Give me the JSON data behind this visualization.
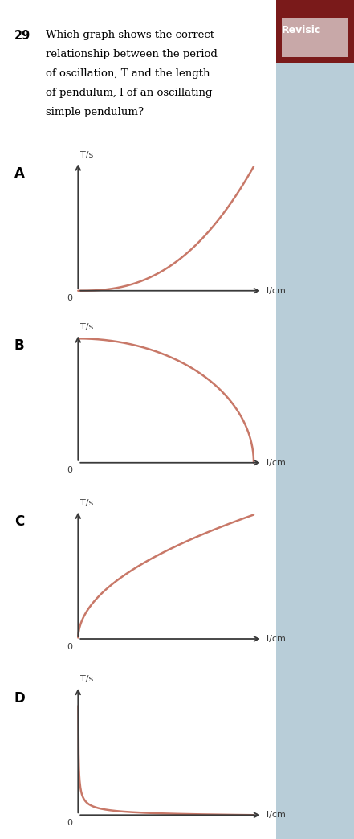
{
  "page_bg": "#ffffff",
  "right_bg": "#b8cdd8",
  "curve_color": "#c87868",
  "axis_color": "#3a3a3a",
  "revision_bg": "#7a1a1a",
  "revision_box_bg": "#c8a8a8",
  "question_num": "29",
  "question_lines": [
    "Which graph shows the correct",
    "relationship between the period",
    "of oscillation, T and the length",
    "of pendulum, l of an oscillating",
    "simple pendulum?"
  ],
  "labels": [
    "A",
    "B",
    "C",
    "D"
  ],
  "ylabel": "T/s",
  "xlabel": "l/cm",
  "revision_text": "Revisic",
  "fig_width": 4.41,
  "fig_height": 10.44,
  "dpi": 100
}
